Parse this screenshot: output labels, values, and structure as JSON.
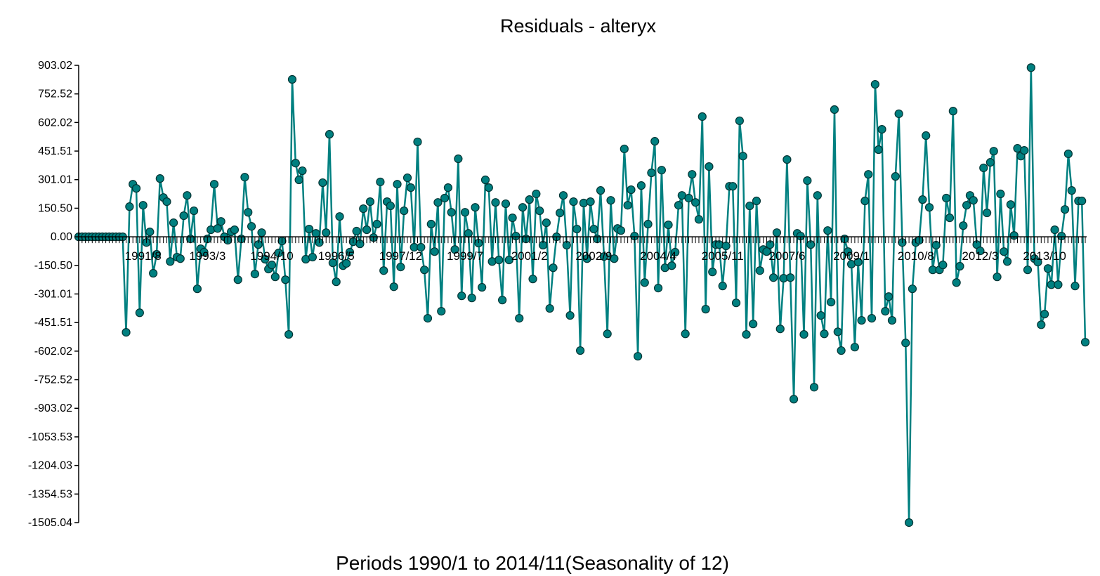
{
  "chart_data": {
    "type": "line",
    "title": "Residuals - alteryx",
    "xlabel": "Periods 1990/1 to 2014/11(Seasonality of 12)",
    "ylabel": "",
    "ylim": [
      -1505.04,
      903.02
    ],
    "grid": false,
    "legend": "none",
    "series_color": "#008080",
    "marker": "circle",
    "yticks": [
      {
        "value": 903.02,
        "label": "903.02"
      },
      {
        "value": 752.52,
        "label": "752.52"
      },
      {
        "value": 602.02,
        "label": "602.02"
      },
      {
        "value": 451.51,
        "label": "451.51"
      },
      {
        "value": 301.01,
        "label": "301.01"
      },
      {
        "value": 150.5,
        "label": "150.50"
      },
      {
        "value": 0,
        "label": "0.00"
      },
      {
        "value": -150.5,
        "label": "-150.50"
      },
      {
        "value": -301.01,
        "label": "-301.01"
      },
      {
        "value": -451.51,
        "label": "-451.51"
      },
      {
        "value": -602.02,
        "label": "-602.02"
      },
      {
        "value": -752.52,
        "label": "-752.52"
      },
      {
        "value": -903.02,
        "label": "-903.02"
      },
      {
        "value": -1053.53,
        "label": "-1053.53"
      },
      {
        "value": -1204.03,
        "label": "-1204.03"
      },
      {
        "value": -1354.53,
        "label": "-1354.53"
      },
      {
        "value": -1505.04,
        "label": "-1505.04"
      }
    ],
    "xticks": [
      {
        "index": 19,
        "label": "1991/8"
      },
      {
        "index": 38,
        "label": "1993/3"
      },
      {
        "index": 57,
        "label": "1994/10"
      },
      {
        "index": 76,
        "label": "1996/5"
      },
      {
        "index": 95,
        "label": "1997/12"
      },
      {
        "index": 114,
        "label": "1999/7"
      },
      {
        "index": 133,
        "label": "2001/2"
      },
      {
        "index": 152,
        "label": "2002/9"
      },
      {
        "index": 171,
        "label": "2004/4"
      },
      {
        "index": 190,
        "label": "2005/11"
      },
      {
        "index": 209,
        "label": "2007/6"
      },
      {
        "index": 228,
        "label": "2009/1"
      },
      {
        "index": 247,
        "label": "2010/8"
      },
      {
        "index": 266,
        "label": "2012/3"
      },
      {
        "index": 285,
        "label": "2013/10"
      }
    ],
    "n_periods": 299,
    "values": [
      0,
      0,
      0,
      0,
      0,
      0,
      0,
      0,
      0,
      0,
      0,
      0,
      0,
      0,
      -503,
      159,
      277,
      255,
      -400,
      166,
      -30,
      26,
      -192,
      -92,
      307,
      207,
      185,
      -130,
      74,
      -107,
      -115,
      111,
      218,
      -11,
      137,
      -274,
      -63,
      -81,
      -11,
      37,
      277,
      44,
      81,
      0,
      -18,
      26,
      37,
      -226,
      -11,
      314,
      129,
      55,
      -196,
      -41,
      22,
      -118,
      -170,
      -148,
      -211,
      -85,
      -22,
      -226,
      -514,
      829,
      388,
      300,
      348,
      -118,
      41,
      -107,
      18,
      -30,
      285,
      22,
      540,
      -137,
      -237,
      107,
      -152,
      -140,
      -81,
      -26,
      30,
      -37,
      148,
      37,
      185,
      -4,
      67,
      289,
      -178,
      185,
      163,
      -263,
      277,
      -159,
      137,
      311,
      259,
      -55,
      500,
      -55,
      -174,
      -429,
      67,
      -78,
      181,
      -392,
      204,
      259,
      129,
      -67,
      411,
      -311,
      129,
      18,
      -322,
      155,
      -33,
      -266,
      300,
      259,
      -130,
      181,
      -122,
      -333,
      174,
      -122,
      100,
      4,
      -429,
      155,
      -11,
      196,
      -222,
      226,
      137,
      -44,
      74,
      -377,
      -163,
      0,
      126,
      218,
      -44,
      -414,
      185,
      41,
      -599,
      178,
      -115,
      185,
      41,
      -11,
      244,
      -104,
      -511,
      192,
      -115,
      44,
      33,
      463,
      166,
      248,
      4,
      -629,
      270,
      -241,
      67,
      337,
      503,
      -270,
      351,
      -163,
      63,
      -152,
      -81,
      166,
      218,
      -511,
      204,
      329,
      181,
      92,
      633,
      -381,
      370,
      -185,
      -41,
      -41,
      -259,
      -48,
      266,
      266,
      -348,
      611,
      425,
      -514,
      163,
      -459,
      189,
      -178,
      -67,
      -78,
      -41,
      -215,
      22,
      -485,
      -218,
      407,
      -215,
      -855,
      18,
      4,
      -514,
      296,
      -41,
      -792,
      218,
      -414,
      -511,
      33,
      -344,
      670,
      -500,
      -599,
      -11,
      -78,
      -144,
      -581,
      -133,
      -440,
      189,
      329,
      -429,
      803,
      459,
      566,
      -392,
      -315,
      -440,
      318,
      648,
      -30,
      -559,
      -1505,
      -274,
      -30,
      -18,
      196,
      533,
      155,
      -174,
      -44,
      -174,
      -148,
      204,
      100,
      662,
      -241,
      -155,
      59,
      166,
      218,
      192,
      -41,
      -74,
      363,
      126,
      392,
      451,
      -211,
      226,
      -78,
      -130,
      170,
      7,
      466,
      425,
      455,
      -174,
      891,
      -115,
      -133,
      -463,
      -407,
      -167,
      -252,
      37,
      -252,
      4,
      144,
      437,
      244,
      -259,
      189,
      189,
      -555
    ]
  }
}
